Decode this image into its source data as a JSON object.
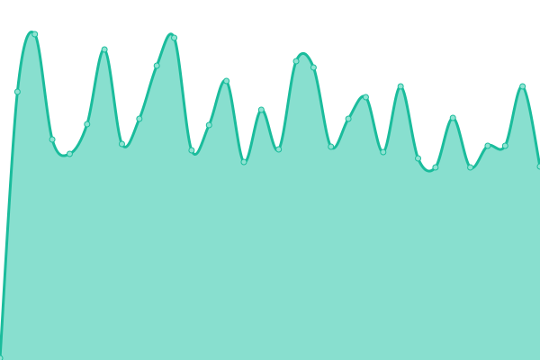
{
  "chart_data": {
    "type": "area",
    "title": "",
    "xlabel": "",
    "ylabel": "",
    "x": [
      0,
      1,
      2,
      3,
      4,
      5,
      6,
      7,
      8,
      9,
      10,
      11,
      12,
      13,
      14,
      15,
      16,
      17,
      18,
      19,
      20,
      21,
      22,
      23,
      24,
      25,
      26,
      27,
      28,
      29,
      30,
      31
    ],
    "values": [
      2,
      298,
      362,
      245,
      229,
      262,
      345,
      240,
      268,
      327,
      358,
      233,
      261,
      310,
      220,
      278,
      234,
      332,
      325,
      237,
      268,
      292,
      231,
      304,
      224,
      214,
      269,
      214,
      238,
      238,
      304,
      215
    ],
    "ylim": [
      0,
      400
    ],
    "grid": false,
    "legend": "none",
    "smooth": true,
    "colors": {
      "line": "#1abc9c",
      "fill": "#88dfcf",
      "marker_fill": "#8fe3d2"
    }
  }
}
